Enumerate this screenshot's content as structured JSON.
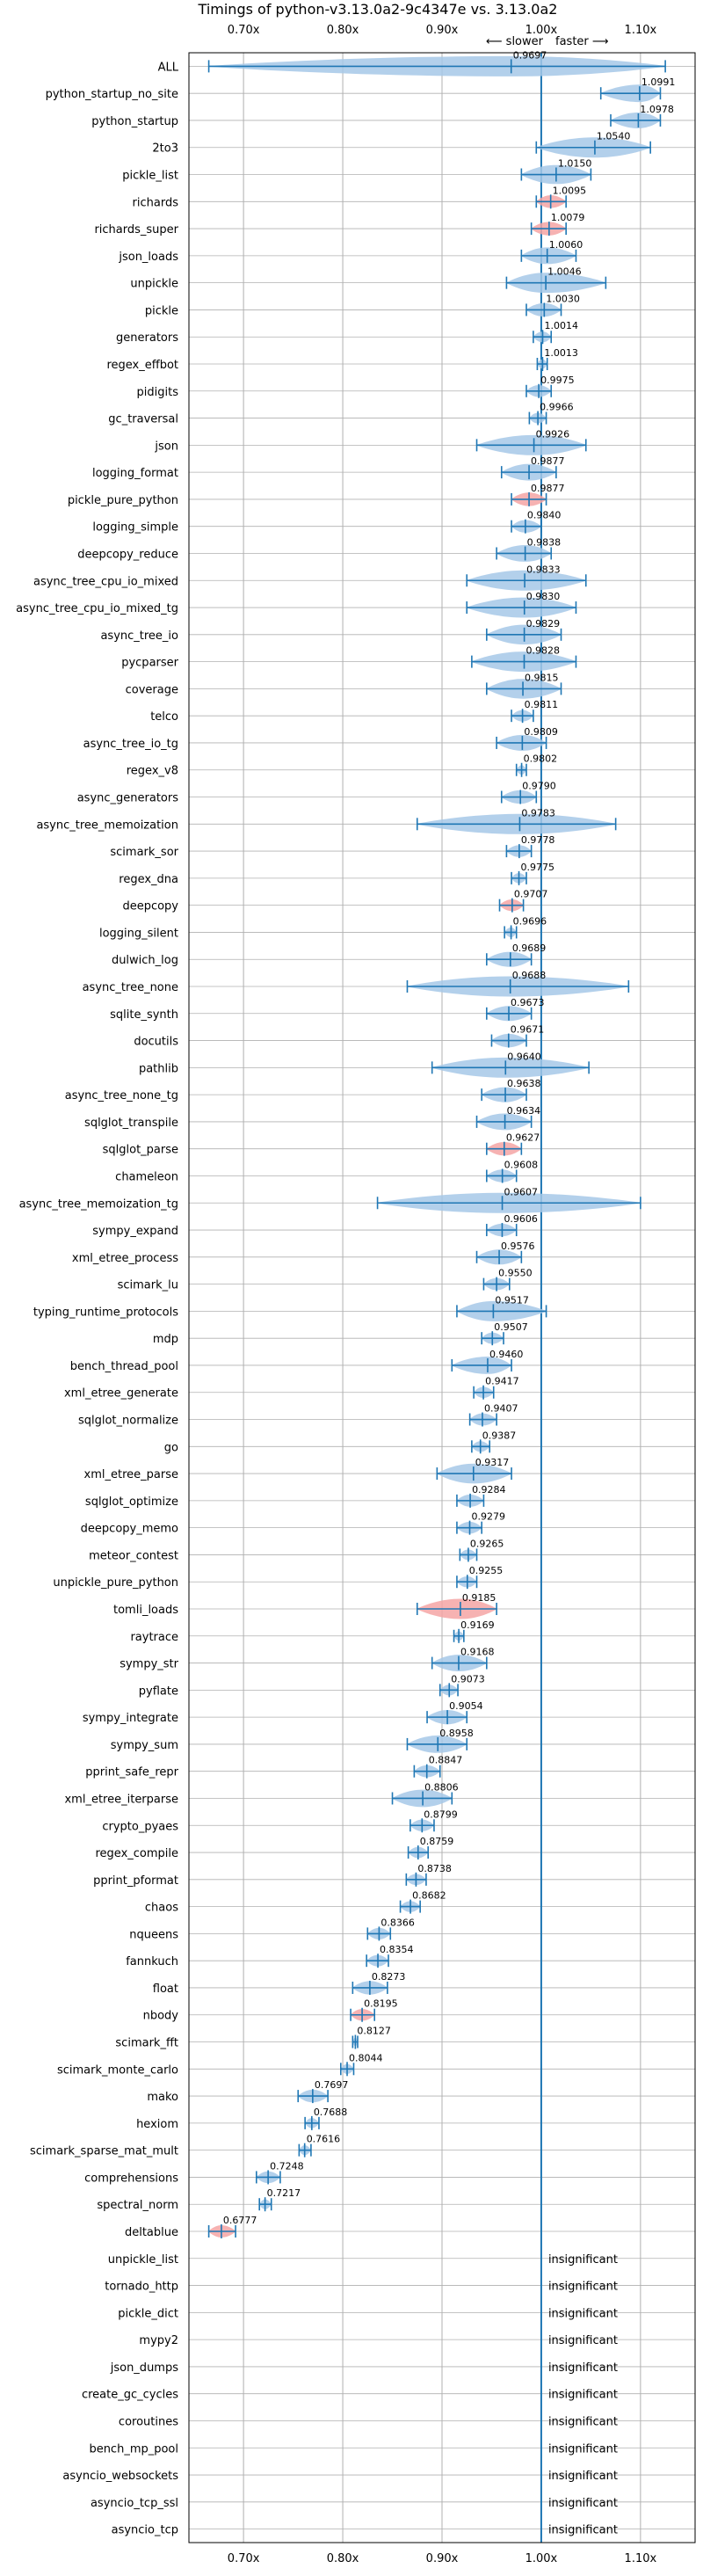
{
  "chart_data": {
    "type": "violin",
    "title": "Timings of python-v3.13.0a2-9c4347e vs. 3.13.0a2",
    "direction_slower": "⟵ slower",
    "direction_faster": "faster ⟶",
    "xlim": [
      0.645,
      1.155
    ],
    "x_ticks": [
      0.7,
      0.8,
      0.9,
      1.0,
      1.1
    ],
    "x_tick_labels": [
      "0.70x",
      "0.80x",
      "0.90x",
      "1.00x",
      "1.10x"
    ],
    "reference_line": 1.0,
    "grid": true,
    "insignificant_label": "insignificant",
    "colors": {
      "normal": "#a6c8e8",
      "slower": "#f4a5a5",
      "line": "#1f77b4",
      "grid": "#b0b0b0"
    },
    "benchmarks": [
      {
        "name": "ALL",
        "mean": 0.9697,
        "lo": 0.665,
        "hi": 1.125,
        "color": "normal",
        "label": "0.9697"
      },
      {
        "name": "python_startup_no_site",
        "mean": 1.0991,
        "lo": 1.06,
        "hi": 1.12,
        "color": "normal",
        "label": "1.0991"
      },
      {
        "name": "python_startup",
        "mean": 1.0978,
        "lo": 1.07,
        "hi": 1.12,
        "color": "normal",
        "label": "1.0978"
      },
      {
        "name": "2to3",
        "mean": 1.054,
        "lo": 0.995,
        "hi": 1.11,
        "color": "normal",
        "label": "1.0540"
      },
      {
        "name": "pickle_list",
        "mean": 1.015,
        "lo": 0.98,
        "hi": 1.05,
        "color": "normal",
        "label": "1.0150"
      },
      {
        "name": "richards",
        "mean": 1.0095,
        "lo": 0.995,
        "hi": 1.025,
        "color": "slower",
        "label": "1.0095"
      },
      {
        "name": "richards_super",
        "mean": 1.0079,
        "lo": 0.99,
        "hi": 1.025,
        "color": "slower",
        "label": "1.0079"
      },
      {
        "name": "json_loads",
        "mean": 1.006,
        "lo": 0.98,
        "hi": 1.035,
        "color": "normal",
        "label": "1.0060"
      },
      {
        "name": "unpickle",
        "mean": 1.0046,
        "lo": 0.965,
        "hi": 1.065,
        "color": "normal",
        "label": "1.0046"
      },
      {
        "name": "pickle",
        "mean": 1.003,
        "lo": 0.985,
        "hi": 1.02,
        "color": "normal",
        "label": "1.0030"
      },
      {
        "name": "generators",
        "mean": 1.0014,
        "lo": 0.992,
        "hi": 1.01,
        "color": "normal",
        "label": "1.0014"
      },
      {
        "name": "regex_effbot",
        "mean": 1.0013,
        "lo": 0.996,
        "hi": 1.006,
        "color": "normal",
        "label": "1.0013"
      },
      {
        "name": "pidigits",
        "mean": 0.9975,
        "lo": 0.985,
        "hi": 1.01,
        "color": "normal",
        "label": "0.9975"
      },
      {
        "name": "gc_traversal",
        "mean": 0.9966,
        "lo": 0.988,
        "hi": 1.005,
        "color": "normal",
        "label": "0.9966"
      },
      {
        "name": "json",
        "mean": 0.9926,
        "lo": 0.935,
        "hi": 1.045,
        "color": "normal",
        "label": "0.9926"
      },
      {
        "name": "logging_format",
        "mean": 0.9877,
        "lo": 0.96,
        "hi": 1.015,
        "color": "normal",
        "label": "0.9877"
      },
      {
        "name": "pickle_pure_python",
        "mean": 0.9877,
        "lo": 0.97,
        "hi": 1.005,
        "color": "slower",
        "label": "0.9877"
      },
      {
        "name": "logging_simple",
        "mean": 0.984,
        "lo": 0.97,
        "hi": 1.0,
        "color": "normal",
        "label": "0.9840"
      },
      {
        "name": "deepcopy_reduce",
        "mean": 0.9838,
        "lo": 0.955,
        "hi": 1.01,
        "color": "normal",
        "label": "0.9838"
      },
      {
        "name": "async_tree_cpu_io_mixed",
        "mean": 0.9833,
        "lo": 0.925,
        "hi": 1.045,
        "color": "normal",
        "label": "0.9833"
      },
      {
        "name": "async_tree_cpu_io_mixed_tg",
        "mean": 0.983,
        "lo": 0.925,
        "hi": 1.035,
        "color": "normal",
        "label": "0.9830"
      },
      {
        "name": "async_tree_io",
        "mean": 0.9829,
        "lo": 0.945,
        "hi": 1.02,
        "color": "normal",
        "label": "0.9829"
      },
      {
        "name": "pycparser",
        "mean": 0.9828,
        "lo": 0.93,
        "hi": 1.035,
        "color": "normal",
        "label": "0.9828"
      },
      {
        "name": "coverage",
        "mean": 0.9815,
        "lo": 0.945,
        "hi": 1.02,
        "color": "normal",
        "label": "0.9815"
      },
      {
        "name": "telco",
        "mean": 0.9811,
        "lo": 0.97,
        "hi": 0.992,
        "color": "normal",
        "label": "0.9811"
      },
      {
        "name": "async_tree_io_tg",
        "mean": 0.9809,
        "lo": 0.955,
        "hi": 1.005,
        "color": "normal",
        "label": "0.9809"
      },
      {
        "name": "regex_v8",
        "mean": 0.9802,
        "lo": 0.975,
        "hi": 0.985,
        "color": "normal",
        "label": "0.9802"
      },
      {
        "name": "async_generators",
        "mean": 0.979,
        "lo": 0.96,
        "hi": 0.995,
        "color": "normal",
        "label": "0.9790"
      },
      {
        "name": "async_tree_memoization",
        "mean": 0.9783,
        "lo": 0.875,
        "hi": 1.075,
        "color": "normal",
        "label": "0.9783"
      },
      {
        "name": "scimark_sor",
        "mean": 0.9778,
        "lo": 0.965,
        "hi": 0.99,
        "color": "normal",
        "label": "0.9778"
      },
      {
        "name": "regex_dna",
        "mean": 0.9775,
        "lo": 0.97,
        "hi": 0.985,
        "color": "normal",
        "label": "0.9775"
      },
      {
        "name": "deepcopy",
        "mean": 0.9707,
        "lo": 0.958,
        "hi": 0.982,
        "color": "slower",
        "label": "0.9707"
      },
      {
        "name": "logging_silent",
        "mean": 0.9696,
        "lo": 0.963,
        "hi": 0.975,
        "color": "normal",
        "label": "0.9696"
      },
      {
        "name": "dulwich_log",
        "mean": 0.9689,
        "lo": 0.945,
        "hi": 0.99,
        "color": "normal",
        "label": "0.9689"
      },
      {
        "name": "async_tree_none",
        "mean": 0.9688,
        "lo": 0.865,
        "hi": 1.088,
        "color": "normal",
        "label": "0.9688"
      },
      {
        "name": "sqlite_synth",
        "mean": 0.9673,
        "lo": 0.945,
        "hi": 0.99,
        "color": "normal",
        "label": "0.9673"
      },
      {
        "name": "docutils",
        "mean": 0.9671,
        "lo": 0.95,
        "hi": 0.985,
        "color": "normal",
        "label": "0.9671"
      },
      {
        "name": "pathlib",
        "mean": 0.964,
        "lo": 0.89,
        "hi": 1.048,
        "color": "normal",
        "label": "0.9640"
      },
      {
        "name": "async_tree_none_tg",
        "mean": 0.9638,
        "lo": 0.94,
        "hi": 0.985,
        "color": "normal",
        "label": "0.9638"
      },
      {
        "name": "sqlglot_transpile",
        "mean": 0.9634,
        "lo": 0.935,
        "hi": 0.99,
        "color": "normal",
        "label": "0.9634"
      },
      {
        "name": "sqlglot_parse",
        "mean": 0.9627,
        "lo": 0.945,
        "hi": 0.98,
        "color": "slower",
        "label": "0.9627"
      },
      {
        "name": "chameleon",
        "mean": 0.9608,
        "lo": 0.945,
        "hi": 0.975,
        "color": "normal",
        "label": "0.9608"
      },
      {
        "name": "async_tree_memoization_tg",
        "mean": 0.9607,
        "lo": 0.835,
        "hi": 1.1,
        "color": "normal",
        "label": "0.9607"
      },
      {
        "name": "sympy_expand",
        "mean": 0.9606,
        "lo": 0.945,
        "hi": 0.975,
        "color": "normal",
        "label": "0.9606"
      },
      {
        "name": "xml_etree_process",
        "mean": 0.9576,
        "lo": 0.935,
        "hi": 0.98,
        "color": "normal",
        "label": "0.9576"
      },
      {
        "name": "scimark_lu",
        "mean": 0.955,
        "lo": 0.942,
        "hi": 0.968,
        "color": "normal",
        "label": "0.9550"
      },
      {
        "name": "typing_runtime_protocols",
        "mean": 0.9517,
        "lo": 0.915,
        "hi": 1.005,
        "color": "normal",
        "label": "0.9517"
      },
      {
        "name": "mdp",
        "mean": 0.9507,
        "lo": 0.94,
        "hi": 0.962,
        "color": "normal",
        "label": "0.9507"
      },
      {
        "name": "bench_thread_pool",
        "mean": 0.946,
        "lo": 0.91,
        "hi": 0.97,
        "color": "normal",
        "label": "0.9460"
      },
      {
        "name": "xml_etree_generate",
        "mean": 0.9417,
        "lo": 0.932,
        "hi": 0.952,
        "color": "normal",
        "label": "0.9417"
      },
      {
        "name": "sqlglot_normalize",
        "mean": 0.9407,
        "lo": 0.928,
        "hi": 0.955,
        "color": "normal",
        "label": "0.9407"
      },
      {
        "name": "go",
        "mean": 0.9387,
        "lo": 0.93,
        "hi": 0.948,
        "color": "normal",
        "label": "0.9387"
      },
      {
        "name": "xml_etree_parse",
        "mean": 0.9317,
        "lo": 0.895,
        "hi": 0.97,
        "color": "normal",
        "label": "0.9317"
      },
      {
        "name": "sqlglot_optimize",
        "mean": 0.9284,
        "lo": 0.915,
        "hi": 0.942,
        "color": "normal",
        "label": "0.9284"
      },
      {
        "name": "deepcopy_memo",
        "mean": 0.9279,
        "lo": 0.915,
        "hi": 0.94,
        "color": "normal",
        "label": "0.9279"
      },
      {
        "name": "meteor_contest",
        "mean": 0.9265,
        "lo": 0.918,
        "hi": 0.935,
        "color": "normal",
        "label": "0.9265"
      },
      {
        "name": "unpickle_pure_python",
        "mean": 0.9255,
        "lo": 0.915,
        "hi": 0.935,
        "color": "normal",
        "label": "0.9255"
      },
      {
        "name": "tomli_loads",
        "mean": 0.9185,
        "lo": 0.875,
        "hi": 0.955,
        "color": "slower",
        "label": "0.9185"
      },
      {
        "name": "raytrace",
        "mean": 0.9169,
        "lo": 0.912,
        "hi": 0.922,
        "color": "normal",
        "label": "0.9169"
      },
      {
        "name": "sympy_str",
        "mean": 0.9168,
        "lo": 0.89,
        "hi": 0.945,
        "color": "normal",
        "label": "0.9168"
      },
      {
        "name": "pyflate",
        "mean": 0.9073,
        "lo": 0.898,
        "hi": 0.916,
        "color": "normal",
        "label": "0.9073"
      },
      {
        "name": "sympy_integrate",
        "mean": 0.9054,
        "lo": 0.885,
        "hi": 0.925,
        "color": "normal",
        "label": "0.9054"
      },
      {
        "name": "sympy_sum",
        "mean": 0.8958,
        "lo": 0.865,
        "hi": 0.925,
        "color": "normal",
        "label": "0.8958"
      },
      {
        "name": "pprint_safe_repr",
        "mean": 0.8847,
        "lo": 0.872,
        "hi": 0.898,
        "color": "normal",
        "label": "0.8847"
      },
      {
        "name": "xml_etree_iterparse",
        "mean": 0.8806,
        "lo": 0.85,
        "hi": 0.91,
        "color": "normal",
        "label": "0.8806"
      },
      {
        "name": "crypto_pyaes",
        "mean": 0.8799,
        "lo": 0.868,
        "hi": 0.892,
        "color": "normal",
        "label": "0.8799"
      },
      {
        "name": "regex_compile",
        "mean": 0.8759,
        "lo": 0.866,
        "hi": 0.886,
        "color": "normal",
        "label": "0.8759"
      },
      {
        "name": "pprint_pformat",
        "mean": 0.8738,
        "lo": 0.864,
        "hi": 0.884,
        "color": "normal",
        "label": "0.8738"
      },
      {
        "name": "chaos",
        "mean": 0.8682,
        "lo": 0.858,
        "hi": 0.878,
        "color": "normal",
        "label": "0.8682"
      },
      {
        "name": "nqueens",
        "mean": 0.8366,
        "lo": 0.825,
        "hi": 0.848,
        "color": "normal",
        "label": "0.8366"
      },
      {
        "name": "fannkuch",
        "mean": 0.8354,
        "lo": 0.824,
        "hi": 0.846,
        "color": "normal",
        "label": "0.8354"
      },
      {
        "name": "float",
        "mean": 0.8273,
        "lo": 0.81,
        "hi": 0.845,
        "color": "normal",
        "label": "0.8273"
      },
      {
        "name": "nbody",
        "mean": 0.8195,
        "lo": 0.808,
        "hi": 0.832,
        "color": "slower",
        "label": "0.8195"
      },
      {
        "name": "scimark_fft",
        "mean": 0.8127,
        "lo": 0.81,
        "hi": 0.815,
        "color": "normal",
        "label": "0.8127"
      },
      {
        "name": "scimark_monte_carlo",
        "mean": 0.8044,
        "lo": 0.798,
        "hi": 0.811,
        "color": "normal",
        "label": "0.8044"
      },
      {
        "name": "mako",
        "mean": 0.7697,
        "lo": 0.755,
        "hi": 0.785,
        "color": "normal",
        "label": "0.7697"
      },
      {
        "name": "hexiom",
        "mean": 0.7688,
        "lo": 0.762,
        "hi": 0.776,
        "color": "normal",
        "label": "0.7688"
      },
      {
        "name": "scimark_sparse_mat_mult",
        "mean": 0.7616,
        "lo": 0.756,
        "hi": 0.768,
        "color": "normal",
        "label": "0.7616"
      },
      {
        "name": "comprehensions",
        "mean": 0.7248,
        "lo": 0.713,
        "hi": 0.737,
        "color": "normal",
        "label": "0.7248"
      },
      {
        "name": "spectral_norm",
        "mean": 0.7217,
        "lo": 0.716,
        "hi": 0.728,
        "color": "normal",
        "label": "0.7217"
      },
      {
        "name": "deltablue",
        "mean": 0.6777,
        "lo": 0.665,
        "hi": 0.692,
        "color": "slower",
        "label": "0.6777"
      },
      {
        "name": "unpickle_list",
        "insignificant": true
      },
      {
        "name": "tornado_http",
        "insignificant": true
      },
      {
        "name": "pickle_dict",
        "insignificant": true
      },
      {
        "name": "mypy2",
        "insignificant": true
      },
      {
        "name": "json_dumps",
        "insignificant": true
      },
      {
        "name": "create_gc_cycles",
        "insignificant": true
      },
      {
        "name": "coroutines",
        "insignificant": true
      },
      {
        "name": "bench_mp_pool",
        "insignificant": true
      },
      {
        "name": "asyncio_websockets",
        "insignificant": true
      },
      {
        "name": "asyncio_tcp_ssl",
        "insignificant": true
      },
      {
        "name": "asyncio_tcp",
        "insignificant": true
      }
    ]
  }
}
